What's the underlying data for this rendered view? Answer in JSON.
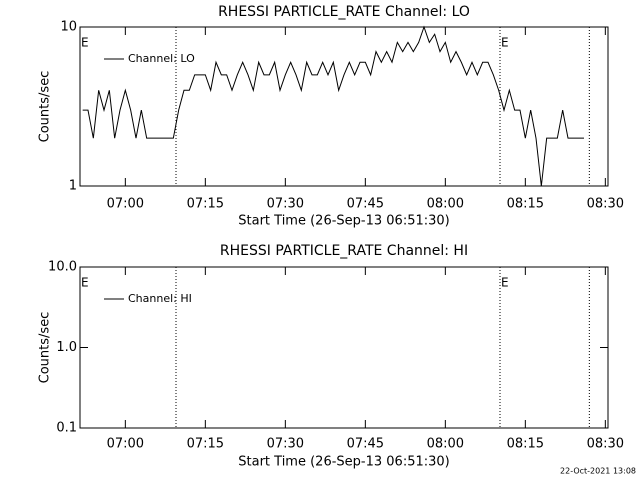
{
  "chart_data": [
    {
      "type": "line",
      "title": "RHESSI PARTICLE_RATE Channel: LO",
      "xlabel": "Start Time (26-Sep-13 06:51:30)",
      "ylabel": "Counts/sec",
      "log_y": true,
      "color": "#000000",
      "legend": "upper left",
      "xlim": [
        "06:51:30",
        "08:30:30"
      ],
      "xticks": [
        "07:00",
        "07:15",
        "07:30",
        "07:45",
        "08:00",
        "08:15",
        "08:30"
      ],
      "ylim": [
        1,
        10
      ],
      "yticks": [
        1,
        10
      ],
      "vlines": [
        "07:09:30",
        "08:10:15",
        "08:27:00"
      ],
      "annotations": [
        {
          "x": "06:51:30",
          "label": "E"
        },
        {
          "x": "08:10:15",
          "label": "E"
        }
      ],
      "x": [
        "06:52",
        "06:53",
        "06:54",
        "06:55",
        "06:56",
        "06:57",
        "06:58",
        "06:59",
        "07:00",
        "07:01",
        "07:02",
        "07:03",
        "07:04",
        "07:05",
        "07:06",
        "07:07",
        "07:08",
        "07:09",
        "07:10",
        "07:11",
        "07:12",
        "07:13",
        "07:14",
        "07:15",
        "07:16",
        "07:17",
        "07:18",
        "07:19",
        "07:20",
        "07:21",
        "07:22",
        "07:23",
        "07:24",
        "07:25",
        "07:26",
        "07:27",
        "07:28",
        "07:29",
        "07:30",
        "07:31",
        "07:32",
        "07:33",
        "07:34",
        "07:35",
        "07:36",
        "07:37",
        "07:38",
        "07:39",
        "07:40",
        "07:41",
        "07:42",
        "07:43",
        "07:44",
        "07:45",
        "07:46",
        "07:47",
        "07:48",
        "07:49",
        "07:50",
        "07:51",
        "07:52",
        "07:53",
        "07:54",
        "07:55",
        "07:56",
        "07:57",
        "07:58",
        "07:59",
        "08:00",
        "08:01",
        "08:02",
        "08:03",
        "08:04",
        "08:05",
        "08:06",
        "08:07",
        "08:08",
        "08:09",
        "08:10",
        "08:11",
        "08:12",
        "08:13",
        "08:14",
        "08:15",
        "08:16",
        "08:17",
        "08:18",
        "08:19",
        "08:20",
        "08:21",
        "08:22",
        "08:23",
        "08:24",
        "08:25",
        "08:26"
      ],
      "series": [
        {
          "name": "Channel: LO",
          "color": "#000000",
          "values": [
            3,
            3,
            2,
            4,
            3,
            4,
            2,
            3,
            4,
            3,
            2,
            3,
            2,
            2,
            2,
            2,
            2,
            2,
            3,
            4,
            4,
            5,
            5,
            5,
            4,
            6,
            5,
            5,
            4,
            5,
            6,
            5,
            4,
            6,
            5,
            5,
            6,
            4,
            5,
            6,
            5,
            4,
            6,
            5,
            5,
            6,
            5,
            6,
            4,
            5,
            6,
            5,
            6,
            6,
            5,
            7,
            6,
            7,
            6,
            8,
            7,
            8,
            7,
            8,
            10,
            8,
            9,
            7,
            8,
            6,
            7,
            6,
            5,
            6,
            5,
            6,
            6,
            5,
            4,
            3,
            4,
            3,
            3,
            2,
            3,
            2,
            1,
            2,
            2,
            2,
            3,
            2,
            2,
            2,
            2
          ]
        }
      ]
    },
    {
      "type": "line",
      "title": "RHESSI PARTICLE_RATE Channel: HI",
      "xlabel": "Start Time (26-Sep-13 06:51:30)",
      "ylabel": "Counts/sec",
      "log_y": true,
      "color": "#000000",
      "legend": "upper left",
      "xlim": [
        "06:51:30",
        "08:30:30"
      ],
      "xticks": [
        "07:00",
        "07:15",
        "07:30",
        "07:45",
        "08:00",
        "08:15",
        "08:30"
      ],
      "ylim": [
        0.1,
        10
      ],
      "yticks": [
        0.1,
        {
          "value": 1,
          "label": "1.0"
        },
        {
          "value": 10,
          "label": "10.0"
        }
      ],
      "vlines": [
        "07:09:30",
        "08:10:15",
        "08:27:00"
      ],
      "annotations": [
        {
          "x": "06:51:30",
          "label": "E"
        },
        {
          "x": "08:10:15",
          "label": "E"
        }
      ],
      "x": [],
      "series": [
        {
          "name": "Channel: HI",
          "color": "#000000",
          "values": []
        }
      ]
    }
  ],
  "footer": "22-Oct-2021 13:08"
}
